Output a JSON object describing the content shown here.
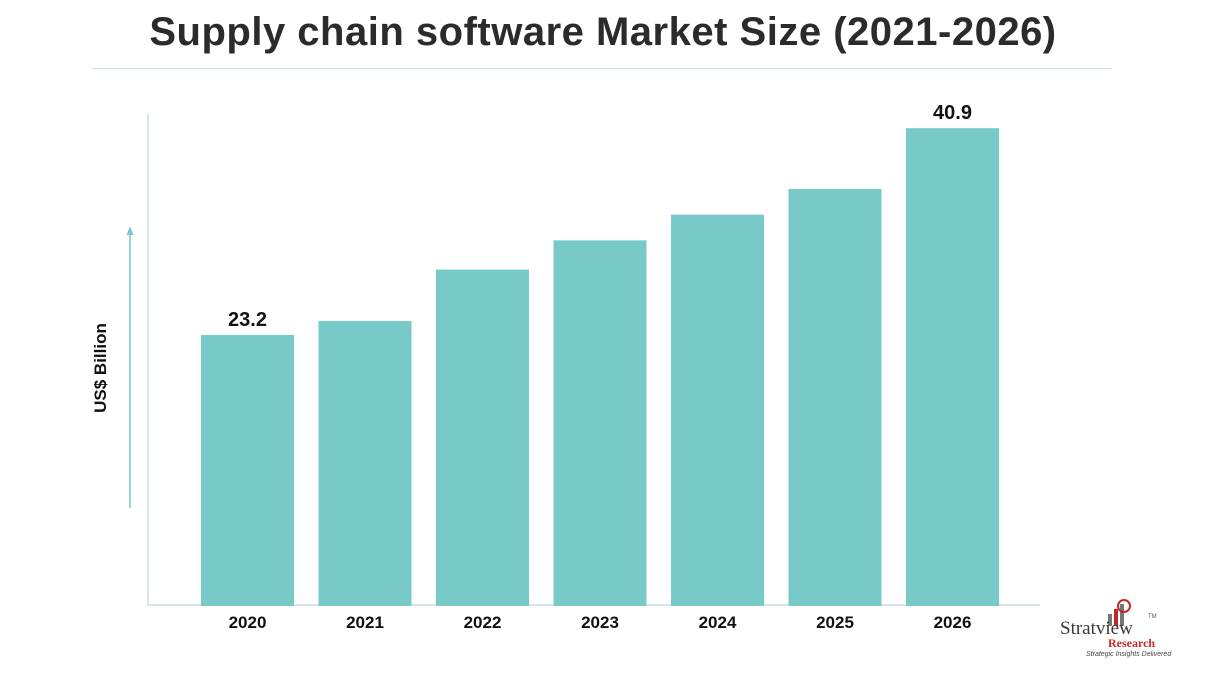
{
  "chart_data": {
    "type": "bar",
    "title": "Supply chain software Market Size (2021-2026)",
    "ylabel": "US$ Billion",
    "categories": [
      "2020",
      "2021",
      "2022",
      "2023",
      "2024",
      "2025",
      "2026"
    ],
    "values": [
      23.2,
      24.4,
      28.8,
      31.3,
      33.5,
      35.7,
      40.9
    ],
    "data_labels": [
      "23.2",
      "",
      "",
      "",
      "",
      "",
      "40.9"
    ],
    "ylim": [
      0,
      44
    ],
    "grid": false,
    "legend": "none",
    "bar_color": "#77cac8"
  },
  "branding": {
    "logo_word": "Stratview",
    "logo_tm": "TM",
    "logo_sub": "Research",
    "logo_tagline": "Strategic Insights Delivered",
    "accent_color": "#c62828"
  }
}
